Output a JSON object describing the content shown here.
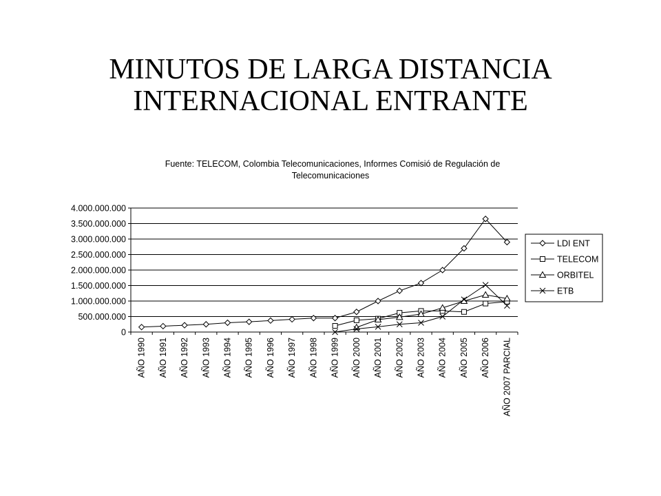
{
  "slide": {
    "title_line1": "MINUTOS DE LARGA DISTANCIA",
    "title_line2": "INTERNACIONAL ENTRANTE"
  },
  "chart_data": {
    "type": "line",
    "title_line1": "Fuente: TELECOM, Colombia Telecomunicaciones, Informes Comisió de Regulación de",
    "title_line2": "Telecomunicaciones",
    "categories": [
      "AÑO 1990",
      "AÑO 1991",
      "AÑO 1992",
      "AÑO 1993",
      "AÑO 1994",
      "AÑO 1995",
      "AÑO 1996",
      "AÑO 1997",
      "AÑO 1998",
      "AÑO 1999",
      "AÑO 2000",
      "AÑO 2001",
      "AÑO 2002",
      "AÑO 2003",
      "AÑO 2004",
      "AÑO 2005",
      "AÑO 2006",
      "AÑO 2007 PARCIAL"
    ],
    "ylim": [
      0,
      4000000000
    ],
    "yticks": [
      0,
      500000000,
      1000000000,
      1500000000,
      2000000000,
      2500000000,
      3000000000,
      3500000000,
      4000000000
    ],
    "ytick_labels": [
      "0",
      "500.000.000",
      "1.000.000.000",
      "1.500.000.000",
      "2.000.000.000",
      "2.500.000.000",
      "3.000.000.000",
      "3.500.000.000",
      "4.000.000.000"
    ],
    "grid": true,
    "legend_position": "right",
    "series": [
      {
        "name": "LDI ENT",
        "marker": "diamond",
        "values": [
          160000000,
          190000000,
          220000000,
          250000000,
          300000000,
          330000000,
          370000000,
          410000000,
          450000000,
          450000000,
          650000000,
          1000000000,
          1330000000,
          1580000000,
          2000000000,
          2700000000,
          3650000000,
          2900000000
        ]
      },
      {
        "name": "TELECOM",
        "marker": "square",
        "values": [
          null,
          null,
          null,
          null,
          null,
          null,
          null,
          null,
          null,
          200000000,
          380000000,
          430000000,
          620000000,
          680000000,
          680000000,
          650000000,
          920000000,
          980000000
        ]
      },
      {
        "name": "ORBITEL",
        "marker": "triangle",
        "values": [
          null,
          null,
          null,
          null,
          null,
          null,
          null,
          null,
          null,
          null,
          150000000,
          400000000,
          480000000,
          580000000,
          780000000,
          1000000000,
          1200000000,
          1080000000
        ]
      },
      {
        "name": "ETB",
        "marker": "x",
        "values": [
          null,
          null,
          null,
          null,
          null,
          null,
          null,
          null,
          null,
          0,
          100000000,
          170000000,
          250000000,
          300000000,
          500000000,
          1050000000,
          1520000000,
          850000000
        ]
      }
    ]
  }
}
